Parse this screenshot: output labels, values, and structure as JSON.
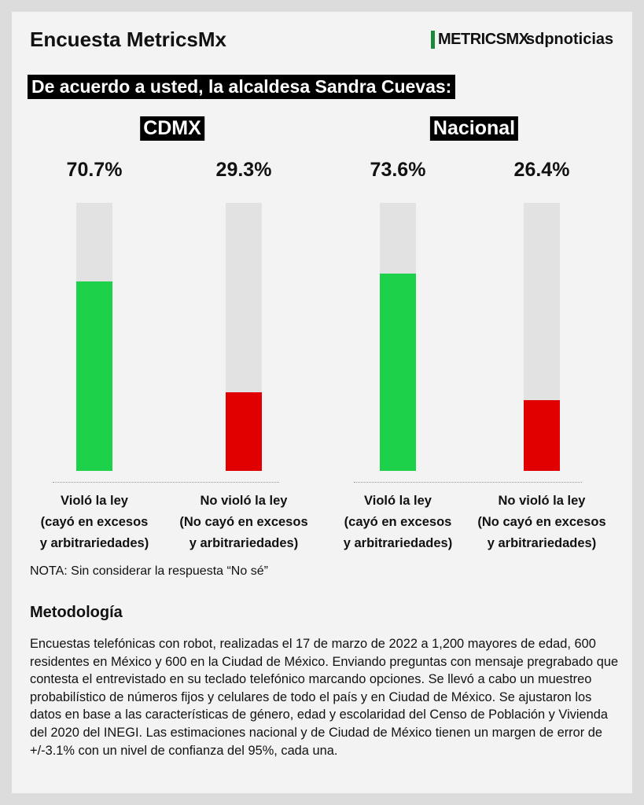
{
  "header": {
    "title": "Encuesta MetricsMx",
    "logo": "METRICSMX",
    "brand": "sdpnoticias"
  },
  "question": "De acuerdo a usted, la alcaldesa Sandra Cuevas:",
  "chart_data": [
    {
      "type": "bar",
      "title": "CDMX",
      "categories": [
        "Violó la ley\n(cayó en excesos\ny arbitrariedades)",
        "No violó la ley\n(No cayó en excesos\ny arbitrariedades)"
      ],
      "values": [
        70.7,
        29.3
      ],
      "value_labels": [
        "70.7%",
        "29.3%"
      ],
      "colors": [
        "#1ed14b",
        "#e00000"
      ],
      "track_color": "#e2e2e2",
      "ylim": [
        0,
        100
      ]
    },
    {
      "type": "bar",
      "title": "Nacional",
      "categories": [
        "Violó la ley\n(cayó en excesos\ny arbitrariedades)",
        "No violó la ley\n(No cayó en excesos\ny arbitrariedades)"
      ],
      "values": [
        73.6,
        26.4
      ],
      "value_labels": [
        "73.6%",
        "26.4%"
      ],
      "colors": [
        "#1ed14b",
        "#e00000"
      ],
      "track_color": "#e2e2e2",
      "ylim": [
        0,
        100
      ]
    }
  ],
  "note": "NOTA: Sin considerar la respuesta “No sé”",
  "methodology": {
    "title": "Metodología",
    "text": "Encuestas telefónicas con robot, realizadas el 17 de marzo de 2022 a 1,200 mayores de edad, 600 residentes en México y 600 en la Ciudad de México. Enviando preguntas con mensaje pregrabado que contesta el entrevistado en su teclado telefónico marcando opciones. Se llevó a cabo un muestreo probabilístico de números fijos y celulares de todo el país y en Ciudad de México. Se ajustaron los datos en base a las características de género, edad y escolaridad del Censo de Población y Vivienda del 2020 del INEGI. Las estimaciones nacional y de Ciudad de México tienen un margen de error de +/-3.1% con un nivel de confianza del 95%, cada una."
  }
}
